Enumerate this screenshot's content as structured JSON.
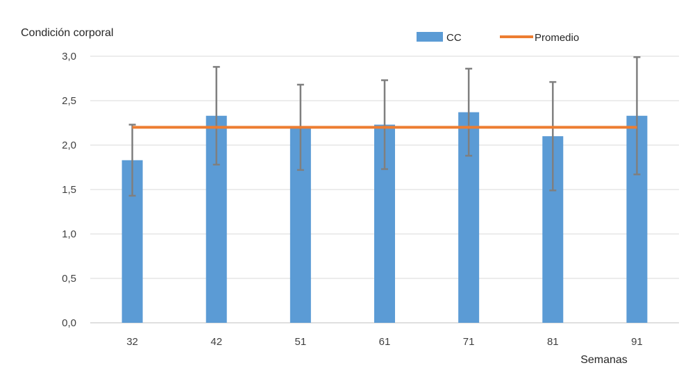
{
  "chart_data": {
    "type": "bar",
    "ylabel": "Condición corporal",
    "xlabel": "Semanas",
    "ylim": [
      0,
      3
    ],
    "y_ticks": [
      "0,0",
      "0,5",
      "1,0",
      "1,5",
      "2,0",
      "2,5",
      "3,0"
    ],
    "y_tick_values": [
      0,
      0.5,
      1.0,
      1.5,
      2.0,
      2.5,
      3.0
    ],
    "categories": [
      "32",
      "42",
      "51",
      "61",
      "71",
      "81",
      "91"
    ],
    "grid": true,
    "legend_position": "top-right",
    "series": [
      {
        "name": "CC",
        "kind": "bar",
        "color": "#5B9BD5",
        "values": [
          1.83,
          2.33,
          2.2,
          2.23,
          2.37,
          2.1,
          2.33
        ],
        "error": [
          0.4,
          0.55,
          0.48,
          0.5,
          0.49,
          0.61,
          0.66
        ]
      },
      {
        "name": "Promedio",
        "kind": "line",
        "color": "#ED7D31",
        "values": [
          2.2,
          2.2,
          2.2,
          2.2,
          2.2,
          2.2,
          2.2
        ]
      }
    ],
    "error_bar_color": "#7F7F7F"
  }
}
